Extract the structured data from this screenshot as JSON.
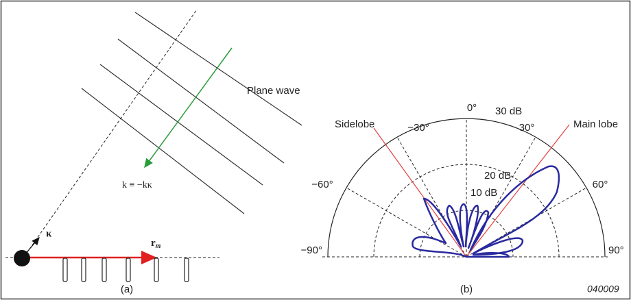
{
  "panel_a": {
    "plane_wave_label": "Plane wave",
    "wave_vector_label": "k ≡ −kκ",
    "kappa_label": "κ",
    "rm_label": {
      "main": "r",
      "sub": "m"
    },
    "caption": "(a)"
  },
  "panel_b": {
    "angle_labels": {
      "top": "0°",
      "left_30": "−30°",
      "right_30": "30°",
      "left_60": "−60°",
      "right_60": "60°",
      "left_90": "−90°",
      "right_90": "90°"
    },
    "radius_labels": {
      "outer": "30 dB",
      "middle": "20 dB",
      "inner": "10 dB"
    },
    "sidelobe_label": "Sidelobe",
    "main_lobe_label": "Main lobe",
    "caption": "(b)"
  },
  "figure_id": "040009"
}
